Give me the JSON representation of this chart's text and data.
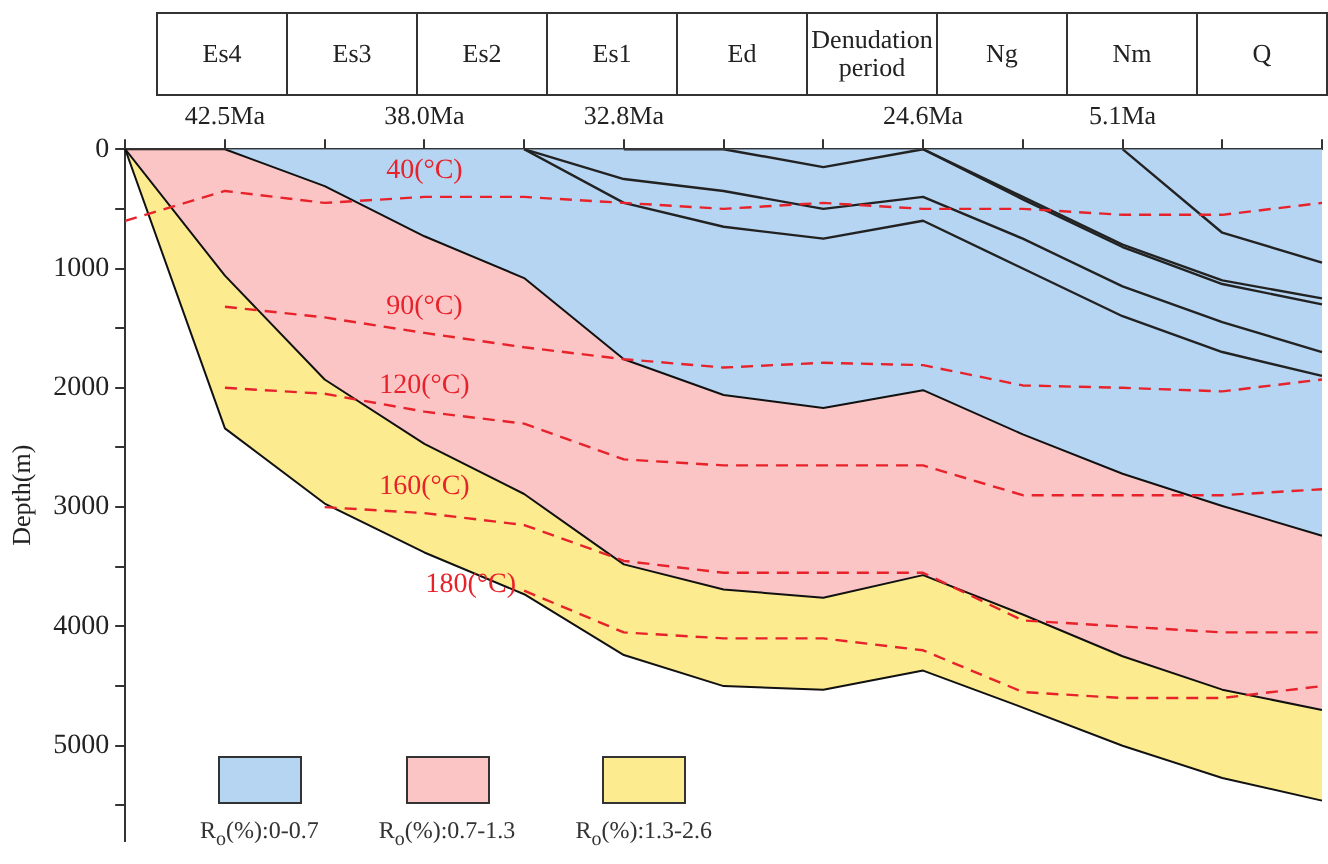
{
  "chart_data": {
    "type": "area",
    "ylabel": "Depth(m)",
    "categories": [
      null,
      "42.5Ma",
      null,
      "38.0Ma",
      null,
      "32.8Ma",
      null,
      null,
      "24.6Ma",
      null,
      "5.1Ma",
      null,
      null
    ],
    "annotations": [
      "Es4",
      "Es3",
      "Es2",
      "Es1",
      "Ed",
      "Denudation period",
      "Ng",
      "Nm",
      "Q"
    ],
    "ylim": [
      5800,
      0
    ],
    "yticks": [
      0,
      {
        "value": 500,
        "label": null
      },
      1000,
      {
        "value": 1500,
        "label": null
      },
      2000,
      {
        "value": 2500,
        "label": null
      },
      3000,
      {
        "value": 3500,
        "label": null
      },
      4000,
      {
        "value": 4500,
        "label": null
      },
      5000,
      {
        "value": 5500,
        "label": null
      }
    ],
    "grid": false,
    "legend": "bottom",
    "series": [
      {
        "type": "area",
        "name": "R$_{o}$(%):0-0.7",
        "color": "#b5d5f2",
        "values": [
          0,
          0,
          310,
          730,
          1080,
          1760,
          2060,
          2170,
          2020,
          2390,
          2720,
          2990,
          3240
        ]
      },
      {
        "type": "area",
        "name": "R$_{o}$(%):0.7-1.3",
        "color": "#fcc5c5",
        "values": [
          0,
          1060,
          1930,
          2470,
          2890,
          3480,
          3690,
          3760,
          3570,
          3900,
          4250,
          4530,
          4700
        ]
      },
      {
        "type": "area",
        "name": "R$_{o}$(%):1.3-2.6",
        "color": "#fdeb8f",
        "values": [
          0,
          2340,
          2970,
          3380,
          3730,
          4240,
          4500,
          4530,
          4370,
          4680,
          5000,
          5270,
          5460
        ]
      },
      {
        "type": "line",
        "color": "#222222",
        "values": [
          null,
          null,
          null,
          null,
          0,
          450,
          650,
          750,
          600,
          1000,
          1400,
          1700,
          1900
        ]
      },
      {
        "type": "line",
        "color": "#222222",
        "values": [
          null,
          null,
          null,
          null,
          0,
          250,
          350,
          500,
          400,
          750,
          1150,
          1450,
          1700
        ]
      },
      {
        "type": "line",
        "color": "#222222",
        "values": [
          null,
          null,
          null,
          null,
          null,
          0,
          0,
          150,
          0,
          400,
          800,
          1100,
          1250
        ]
      },
      {
        "type": "line",
        "color": "#222222",
        "values": [
          null,
          null,
          null,
          null,
          null,
          null,
          null,
          null,
          0,
          420,
          820,
          1130,
          1300
        ]
      },
      {
        "type": "line",
        "color": "#222222",
        "values": [
          null,
          null,
          null,
          null,
          null,
          null,
          null,
          null,
          null,
          null,
          0,
          700,
          950
        ]
      },
      {
        "type": "line",
        "name": "40(°C)",
        "color": "#e8222a",
        "line_style": "dashed",
        "values": [
          600,
          350,
          450,
          400,
          400,
          450,
          500,
          450,
          500,
          500,
          550,
          550,
          450
        ]
      },
      {
        "type": "line",
        "name": "90(°C)",
        "color": "#e8222a",
        "line_style": "dashed",
        "values": [
          null,
          1320,
          1410,
          1540,
          1660,
          1760,
          1830,
          1790,
          1810,
          1980,
          2000,
          2030,
          1930
        ]
      },
      {
        "type": "line",
        "name": "120(°C)",
        "color": "#e8222a",
        "line_style": "dashed",
        "values": [
          null,
          2000,
          2050,
          2200,
          2300,
          2600,
          2650,
          2650,
          2650,
          2900,
          2900,
          2900,
          2850
        ]
      },
      {
        "type": "line",
        "name": "160(°C)",
        "color": "#e8222a",
        "line_style": "dashed",
        "values": [
          null,
          null,
          3000,
          3050,
          3150,
          3450,
          3550,
          3550,
          3550,
          3950,
          4000,
          4050,
          4050
        ]
      },
      {
        "type": "line",
        "name": "180(°C)",
        "color": "#e8222a",
        "line_style": "dashed",
        "values": [
          null,
          null,
          null,
          null,
          3700,
          4050,
          4100,
          4100,
          4200,
          4550,
          4600,
          4600,
          4500
        ]
      }
    ]
  }
}
